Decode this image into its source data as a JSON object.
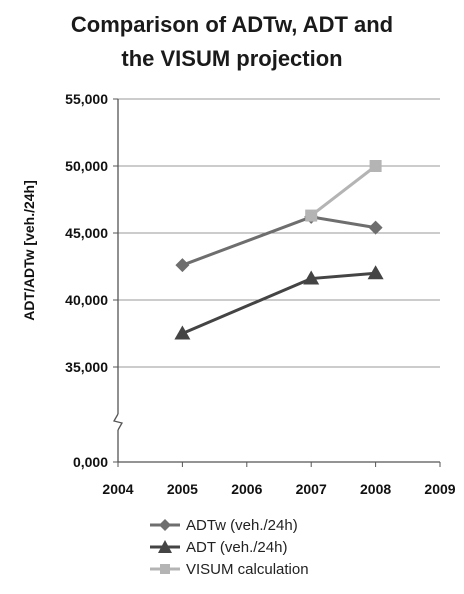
{
  "chart_data": {
    "type": "line",
    "title_lines": [
      "Comparison of ADTw, ADT and",
      "the VISUM projection"
    ],
    "ylabel": "ADT/ADTw [veh./24h]",
    "xlabel": "",
    "x_ticks": [
      "2004",
      "2005",
      "2006",
      "2007",
      "2008",
      "2009"
    ],
    "xlim": [
      2004,
      2009
    ],
    "y_ticks": [
      {
        "label": "55,000",
        "value": 55000
      },
      {
        "label": "50,000",
        "value": 50000
      },
      {
        "label": "45,000",
        "value": 45000
      },
      {
        "label": "40,000",
        "value": 40000
      },
      {
        "label": "35,000",
        "value": 35000
      },
      {
        "label": "0,000",
        "value": 0
      }
    ],
    "ylim": [
      0,
      55000
    ],
    "y_axis_break": true,
    "grid": true,
    "legend_position": "bottom",
    "series": [
      {
        "name": "ADTw (veh./24h)",
        "marker": "diamond",
        "color": "#6e6e6e",
        "x": [
          2005,
          2007,
          2008
        ],
        "y": [
          42600,
          46200,
          45400
        ]
      },
      {
        "name": "ADT (veh./24h)",
        "marker": "triangle",
        "color": "#444444",
        "x": [
          2005,
          2007,
          2008
        ],
        "y": [
          37500,
          41600,
          42000
        ]
      },
      {
        "name": "VISUM calculation",
        "marker": "square",
        "color": "#b4b4b4",
        "x": [
          2007,
          2008
        ],
        "y": [
          46300,
          50000
        ]
      }
    ]
  }
}
